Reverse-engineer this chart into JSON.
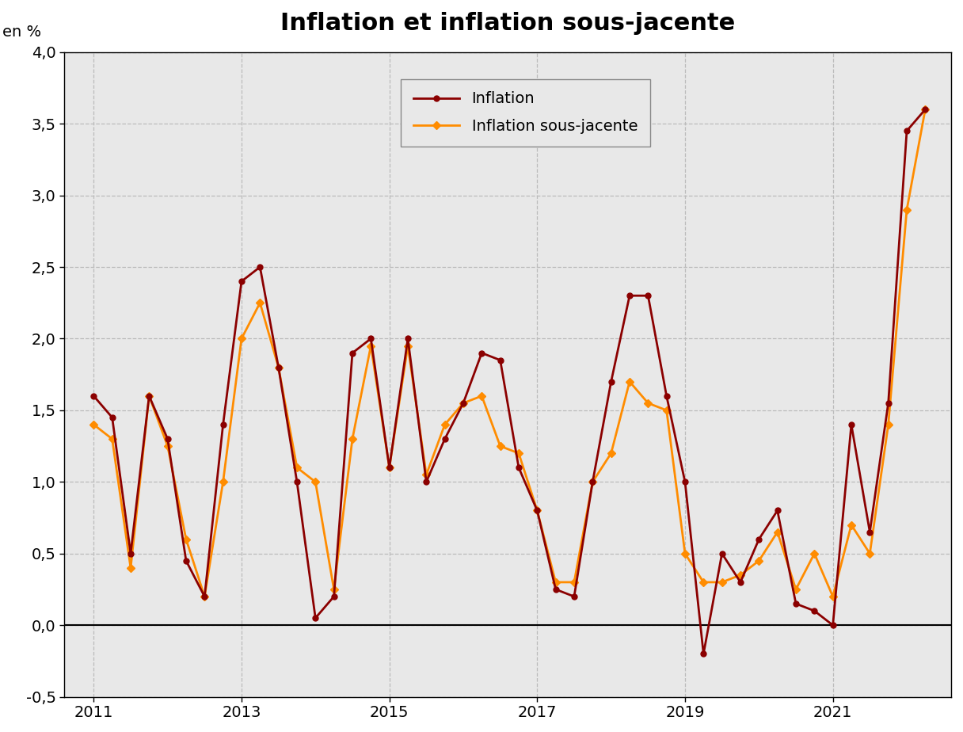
{
  "title": "Inflation et inflation sous-jacente",
  "ylabel": "en %",
  "ylim": [
    -0.5,
    4.0
  ],
  "yticks": [
    -0.5,
    0.0,
    0.5,
    1.0,
    1.5,
    2.0,
    2.5,
    3.0,
    3.5,
    4.0
  ],
  "ytick_labels": [
    "-0,5",
    "0,0",
    "0,5",
    "1,0",
    "1,5",
    "2,0",
    "2,5",
    "3,0",
    "3,5",
    "4,0"
  ],
  "xlim": [
    2010.6,
    2022.6
  ],
  "xticks": [
    2011,
    2013,
    2015,
    2017,
    2019,
    2021
  ],
  "plot_bg_color": "#e8e8e8",
  "fig_bg_color": "#ffffff",
  "grid_color": "#bbbbbb",
  "inflation_color": "#8B0000",
  "sous_jacente_color": "#FF8C00",
  "inflation_label": "Inflation",
  "sous_jacente_label": "Inflation sous-jacente",
  "x": [
    2011.0,
    2011.25,
    2011.5,
    2011.75,
    2012.0,
    2012.25,
    2012.5,
    2012.75,
    2013.0,
    2013.25,
    2013.5,
    2013.75,
    2014.0,
    2014.25,
    2014.5,
    2014.75,
    2015.0,
    2015.25,
    2015.5,
    2015.75,
    2016.0,
    2016.25,
    2016.5,
    2016.75,
    2017.0,
    2017.25,
    2017.5,
    2017.75,
    2018.0,
    2018.25,
    2018.5,
    2018.75,
    2019.0,
    2019.25,
    2019.5,
    2019.75,
    2020.0,
    2020.25,
    2020.5,
    2020.75,
    2021.0,
    2021.25,
    2021.5,
    2021.75,
    2022.0,
    2022.25
  ],
  "inflation": [
    1.6,
    1.45,
    0.5,
    1.6,
    1.3,
    0.45,
    0.2,
    1.4,
    2.4,
    2.5,
    1.8,
    1.0,
    0.05,
    0.2,
    1.9,
    2.0,
    1.1,
    2.0,
    1.0,
    1.3,
    1.55,
    1.9,
    1.85,
    1.1,
    0.8,
    0.25,
    0.2,
    1.0,
    1.7,
    2.3,
    2.3,
    1.6,
    1.0,
    -0.2,
    0.5,
    0.3,
    0.6,
    0.8,
    0.15,
    0.1,
    0.0,
    1.4,
    0.65,
    1.55,
    3.45,
    3.6
  ],
  "sous_jacente": [
    1.4,
    1.3,
    0.4,
    1.6,
    1.25,
    0.6,
    0.2,
    1.0,
    2.0,
    2.25,
    1.8,
    1.1,
    1.0,
    0.25,
    1.3,
    1.95,
    1.1,
    1.95,
    1.05,
    1.4,
    1.55,
    1.6,
    1.25,
    1.2,
    0.8,
    0.3,
    0.3,
    1.0,
    1.2,
    1.7,
    1.55,
    1.5,
    0.5,
    0.3,
    0.3,
    0.35,
    0.45,
    0.65,
    0.25,
    0.5,
    0.2,
    0.7,
    0.5,
    1.4,
    2.9,
    3.6
  ],
  "title_fontsize": 22,
  "tick_fontsize": 14,
  "legend_fontsize": 14
}
